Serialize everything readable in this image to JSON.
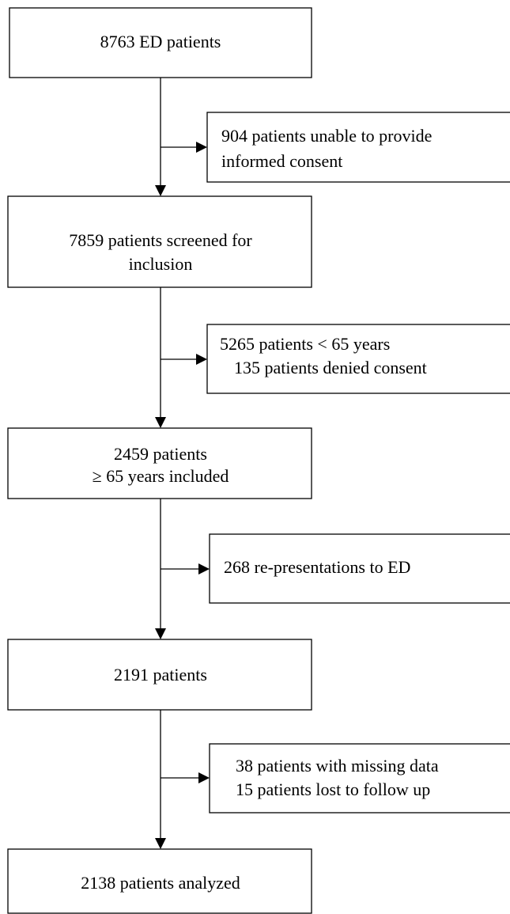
{
  "nodes": [
    {
      "lines": [
        "8763 ED patients"
      ]
    },
    {
      "lines": [
        "7859 patients screened for",
        "inclusion"
      ]
    },
    {
      "lines": [
        "2459 patients",
        "≥ 65 years included"
      ]
    },
    {
      "lines": [
        "2191 patients"
      ]
    },
    {
      "lines": [
        "2138 patients analyzed"
      ]
    }
  ],
  "exclusions": [
    {
      "lines": [
        "904 patients unable to provide",
        "informed consent"
      ]
    },
    {
      "lines": [
        "5265 patients < 65 years",
        "135 patients denied consent"
      ]
    },
    {
      "lines": [
        "268 re-presentations to ED"
      ]
    },
    {
      "lines": [
        "38 patients with missing data",
        "15 patients lost to follow up"
      ]
    }
  ]
}
